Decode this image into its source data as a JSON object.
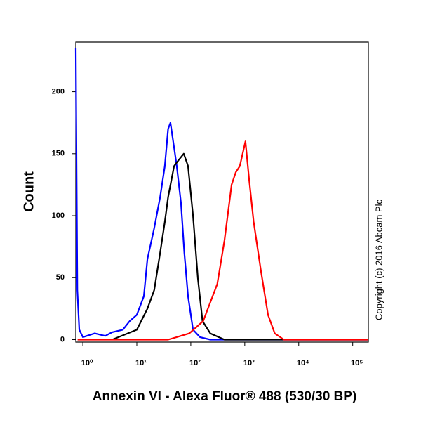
{
  "chart_data": {
    "type": "line",
    "x_label": "Annexin VI - Alexa Fluor® 488 (530/30 BP)",
    "y_label": "Count",
    "annotation": "Copyright (c) 2016 Abcam Plc",
    "xscale": "log",
    "xlim": [
      0.74,
      195000
    ],
    "ylim": [
      -2,
      240
    ],
    "xticks": [
      {
        "value": 1,
        "label": "10⁰"
      },
      {
        "value": 10,
        "label": "10¹"
      },
      {
        "value": 100,
        "label": "10²"
      },
      {
        "value": 1000,
        "label": "10³"
      },
      {
        "value": 10000,
        "label": "10⁴"
      },
      {
        "value": 100000,
        "label": "10⁵"
      }
    ],
    "yticks": [
      0,
      50,
      100,
      150,
      200
    ],
    "series": [
      {
        "color": "#0000ff",
        "x": [
          0.74,
          0.79,
          0.86,
          1,
          1.66,
          2.6,
          3.5,
          5.5,
          7.4,
          10,
          13.5,
          15.7,
          21,
          27,
          33,
          38,
          42,
          49,
          55,
          66,
          76,
          89,
          110,
          148,
          230,
          195000
        ],
        "values": [
          235,
          40,
          8,
          2,
          5,
          3,
          6,
          8,
          15,
          20,
          35,
          65,
          90,
          115,
          140,
          170,
          175,
          155,
          140,
          110,
          70,
          35,
          8,
          2,
          0,
          0
        ]
      },
      {
        "color": "#000000",
        "x": [
          3.5,
          10,
          15.7,
          21,
          27,
          33,
          38,
          49,
          60,
          74,
          89,
          110,
          135,
          165,
          230,
          420,
          195000
        ],
        "values": [
          0,
          8,
          25,
          40,
          70,
          95,
          115,
          140,
          145,
          150,
          140,
          100,
          50,
          15,
          5,
          0,
          0
        ]
      },
      {
        "color": "#ff0000",
        "x": [
          0.8,
          38,
          94,
          170,
          310,
          420,
          570,
          680,
          810,
          1030,
          1200,
          1460,
          2000,
          2700,
          3600,
          5300,
          195000
        ],
        "values": [
          0,
          0,
          5,
          15,
          45,
          80,
          125,
          135,
          140,
          160,
          130,
          95,
          55,
          20,
          5,
          0,
          0
        ]
      }
    ]
  }
}
